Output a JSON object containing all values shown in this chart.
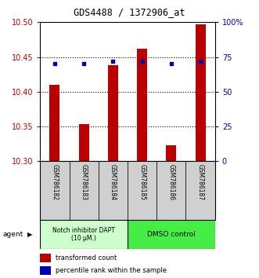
{
  "title": "GDS4488 / 1372906_at",
  "samples": [
    "GSM786182",
    "GSM786183",
    "GSM786184",
    "GSM786185",
    "GSM786186",
    "GSM786187"
  ],
  "bar_values": [
    10.41,
    10.353,
    10.438,
    10.462,
    10.323,
    10.497
  ],
  "bar_bottom": 10.3,
  "percentile_values": [
    70,
    70,
    72,
    72,
    70,
    72
  ],
  "ylim_left": [
    10.3,
    10.5
  ],
  "ylim_right": [
    0,
    100
  ],
  "yticks_left": [
    10.3,
    10.35,
    10.4,
    10.45,
    10.5
  ],
  "yticks_right": [
    0,
    25,
    50,
    75,
    100
  ],
  "ytick_labels_right": [
    "0",
    "25",
    "50",
    "75",
    "100%"
  ],
  "bar_color": "#bb0000",
  "dot_color": "#0000bb",
  "group1_label": "Notch inhibitor DAPT\n(10 μM.)",
  "group2_label": "DMSO control",
  "group1_color": "#ccffcc",
  "group2_color": "#44ee44",
  "agent_label": "agent",
  "legend_bar_label": "transformed count",
  "legend_dot_label": "percentile rank within the sample",
  "sample_box_color": "#d0d0d0",
  "plot_bg": "#ffffff"
}
